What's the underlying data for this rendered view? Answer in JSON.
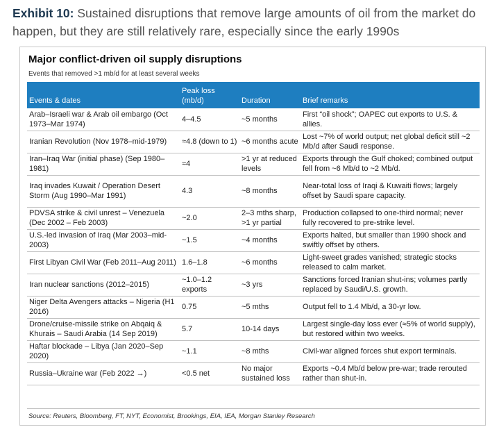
{
  "exhibit": {
    "label": "Exhibit 10:",
    "text": "Sustained disruptions that remove large amounts of oil from the market do happen, but they are still relatively rare, especially since the early 1990s"
  },
  "card": {
    "title": "Major conflict-driven oil supply disruptions",
    "subtitle": "Events that removed >1 mb/d for at least several weeks",
    "source": "Source: Reuters, Bloomberg, FT, NYT, Economist, Brookings, EIA, IEA, Morgan Stanley Research"
  },
  "table": {
    "headers": [
      "Events & dates",
      "Peak loss (mb/d)",
      "Duration",
      "Brief remarks"
    ],
    "rows": [
      {
        "event": "Arab–Israeli war & Arab oil embargo (Oct 1973–Mar 1974)",
        "loss": "4–4.5",
        "duration": "~5 months",
        "remarks": "First “oil shock”; OAPEC cut exports to U.S. & allies."
      },
      {
        "event": "Iranian Revolution (Nov 1978–mid-1979)",
        "loss": "≈4.8 (down to 1)",
        "duration": "~6 months acute",
        "remarks": "Lost ~7% of world output; net global deficit still ~2 Mb/d after Saudi response."
      },
      {
        "event": "Iran–Iraq War (initial phase) (Sep 1980–1981)",
        "loss": "≈4",
        "duration": ">1 yr at reduced levels",
        "remarks": "Exports through the Gulf choked; combined output fell from ~6 Mb/d to ~2 Mb/d."
      },
      {
        "event": "Iraq invades Kuwait / Operation Desert Storm (Aug 1990–Mar 1991)",
        "loss": "4.3",
        "duration": "~8 months",
        "remarks": "Near-total loss of Iraqi & Kuwaiti flows; largely offset by Saudi spare capacity."
      },
      {
        "event": "PDVSA strike & civil unrest – Venezuela (Dec 2002 – Feb 2003)",
        "loss": "~2.0",
        "duration": "2–3 mths sharp, >1 yr partial",
        "remarks": "Production collapsed to one-third normal; never fully recovered to pre-strike level."
      },
      {
        "event": "U.S.-led invasion of Iraq (Mar 2003–mid-2003)",
        "loss": "~1.5",
        "duration": "~4 months",
        "remarks": "Exports halted, but smaller than 1990 shock and swiftly offset by others."
      },
      {
        "event": "First Libyan Civil War (Feb 2011–Aug 2011)",
        "loss": "1.6–1.8",
        "duration": "~6 months",
        "remarks": "Light-sweet grades vanished; strategic stocks released to calm market."
      },
      {
        "event": "Iran nuclear sanctions (2012–2015)",
        "loss": "~1.0–1.2 exports",
        "duration": "~3 yrs",
        "remarks": "Sanctions forced Iranian shut-ins; volumes partly replaced by Saudi/U.S. growth."
      },
      {
        "event": "Niger Delta Avengers attacks – Nigeria (H1 2016)",
        "loss": "0.75",
        "duration": "~5 mths",
        "remarks": "Output fell to 1.4 Mb/d, a 30-yr low."
      },
      {
        "event": "Drone/cruise-missile strike on Abqaiq & Khurais – Saudi Arabia (14 Sep 2019)",
        "loss": "5.7",
        "duration": "10-14 days",
        "remarks": "Largest single-day loss ever (≈5% of world supply), but restored within two weeks."
      },
      {
        "event": "Haftar blockade – Libya (Jan 2020–Sep 2020)",
        "loss": "~1.1",
        "duration": "~8 mths",
        "remarks": "Civil-war aligned forces shut export terminals."
      },
      {
        "event": "Russia–Ukraine war (Feb 2022 →)",
        "loss": "<0.5 net",
        "duration": "No major sustained loss",
        "remarks": "Exports ~0.4 Mb/d below pre-war; trade rerouted rather than shut-in."
      }
    ]
  }
}
